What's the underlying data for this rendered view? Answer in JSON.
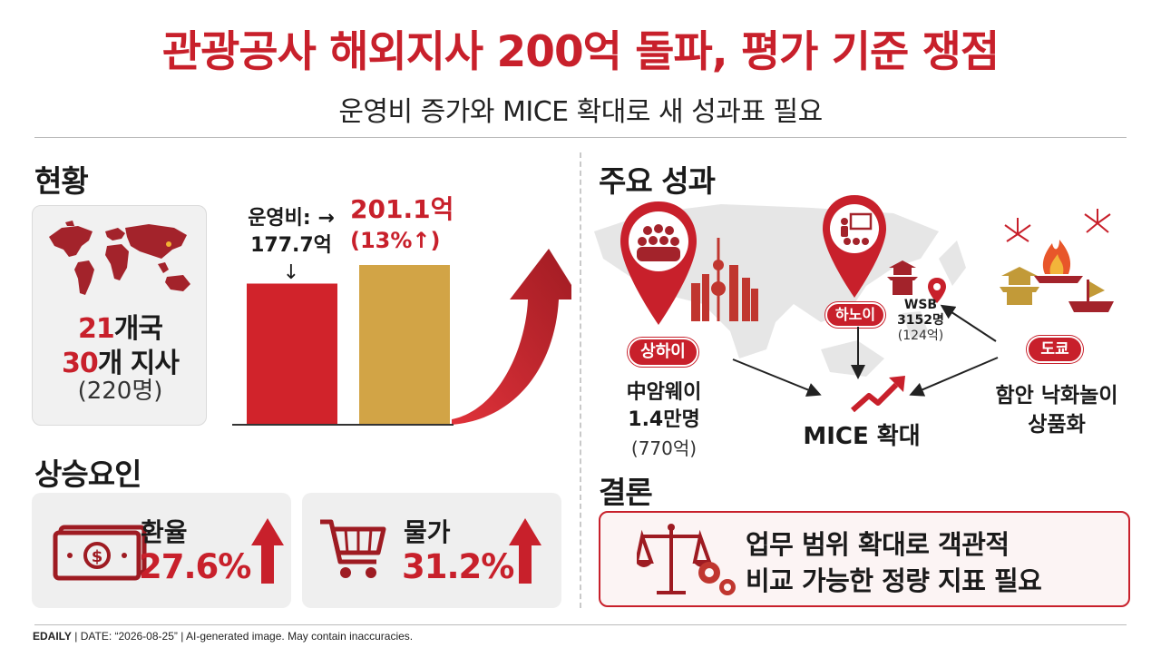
{
  "header": {
    "title": "관광공사 해외지사 200억 돌파, 평가 기준 쟁점",
    "subtitle": "운영비 증가와 MICE 확대로 새 성과표 필요"
  },
  "status": {
    "heading": "현황",
    "countries": "21",
    "countries_suffix": "개국",
    "branches": "30",
    "branches_suffix": "개 지사",
    "staff": "(220명)"
  },
  "cost_chart": {
    "old_label": "운영비:",
    "old_value": "177.7억",
    "new_value": "201.1억",
    "change": "(13%↑)"
  },
  "chart_data": {
    "type": "bar",
    "categories": [
      "",
      ""
    ],
    "values": [
      177.7,
      201.1
    ],
    "colors": [
      "#d1232b",
      "#d2a446"
    ],
    "title": "",
    "xlabel": "",
    "ylabel": ""
  },
  "factors": {
    "heading": "상승요인",
    "items": [
      {
        "name": "환율",
        "value": "27.6%",
        "icon": "money-icon"
      },
      {
        "name": "물가",
        "value": "31.2%",
        "icon": "cart-icon"
      }
    ]
  },
  "achievements": {
    "heading": "주요 성과",
    "shanghai": {
      "city": "상하이",
      "line1": "中암웨이",
      "line2": "1.4만명",
      "line3": "(770억)"
    },
    "hanoi": {
      "city": "하노이",
      "line1": "WSB",
      "line2": "3152명",
      "line3": "(124억)"
    },
    "tokyo": {
      "city": "도쿄",
      "line1": "함안 낙화놀이",
      "line2": "상품화"
    },
    "center": "MICE 확대"
  },
  "conclusion": {
    "heading": "결론",
    "line1": "업무 범위 확대로 객관적",
    "line2": "비교 가능한 정량 지표 필요"
  },
  "footer": {
    "brand": "EDAILY",
    "date": "DATE: “2026-08-25”",
    "note": "AI-generated image. May contain inaccuracies."
  },
  "colors": {
    "accent": "#c8202b",
    "gold": "#d2a446",
    "dark_red": "#9e1b22"
  }
}
